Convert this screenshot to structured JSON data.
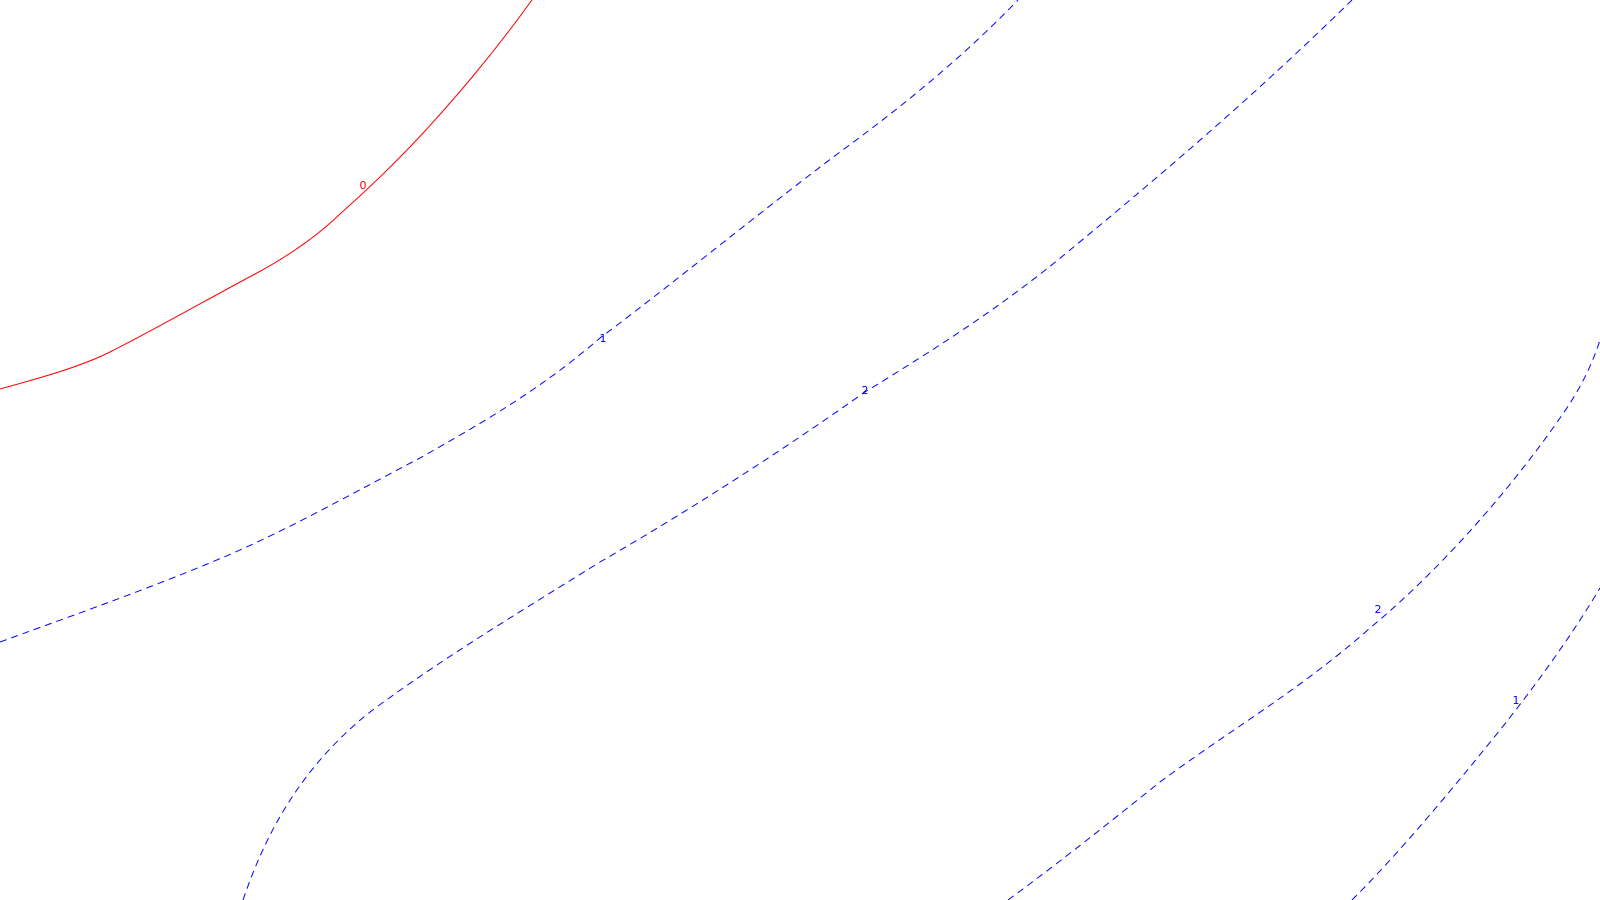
{
  "colors": {
    "background": "#ffffff",
    "zero_contour": "#ff0000",
    "positive_contour": "#0000ff"
  },
  "contours": [
    {
      "id": "contour-0",
      "level": "0",
      "style": "solid",
      "color": "#ff0000"
    },
    {
      "id": "contour-1-a",
      "level": "1",
      "style": "dashed",
      "color": "#0000ff"
    },
    {
      "id": "contour-2-a",
      "level": "2",
      "style": "dashed",
      "color": "#0000ff"
    },
    {
      "id": "contour-2-b",
      "level": "2",
      "style": "dashed",
      "color": "#0000ff"
    },
    {
      "id": "contour-1-b",
      "level": "1",
      "style": "dashed",
      "color": "#0000ff"
    }
  ]
}
